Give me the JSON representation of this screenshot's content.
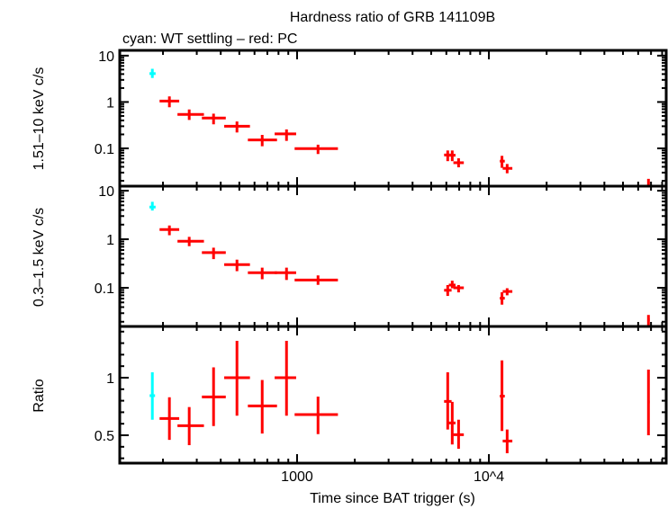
{
  "title": "Hardness ratio of GRB 141109B",
  "subtitle": "cyan: WT settling – red: PC",
  "xlabel": "Time since BAT trigger (s)",
  "colors": {
    "WT": "#00ffff",
    "PC": "#ff0000",
    "axes": "#000000"
  },
  "chart_data": [
    {
      "type": "scatter",
      "panel": "top",
      "ylabel": "1.51–10 keV c/s",
      "xscale": "log",
      "yscale": "log",
      "xlim": [
        119,
        84000
      ],
      "ylim": [
        0.0153,
        13
      ],
      "xticks": [
        {
          "value": 1000,
          "label": "1000"
        },
        {
          "value": 10000,
          "label": "10^4"
        }
      ],
      "yticks": [
        {
          "value": 10,
          "label": "10"
        },
        {
          "value": 1,
          "label": "1"
        },
        {
          "value": 0.1,
          "label": "0.1"
        }
      ],
      "point_format": [
        "t",
        "t_lo",
        "t_hi",
        "y",
        "y_lo",
        "y_hi"
      ],
      "series": [
        {
          "name": "WT settling",
          "color": "#00ffff",
          "points": [
            [
              176,
              170,
              183,
              4.1,
              3.3,
              5.2
            ]
          ]
        },
        {
          "name": "PC",
          "color": "#ff0000",
          "points": [
            [
              216,
              192,
              243,
              1.05,
              0.77,
              1.32
            ],
            [
              274,
              238,
              327,
              0.54,
              0.41,
              0.69
            ],
            [
              367,
              319,
              425,
              0.45,
              0.33,
              0.56
            ],
            [
              486,
              417,
              568,
              0.3,
              0.22,
              0.38
            ],
            [
              658,
              554,
              786,
              0.152,
              0.111,
              0.195
            ],
            [
              881,
              764,
              989,
              0.205,
              0.145,
              0.256
            ],
            [
              1286,
              971,
              1633,
              0.099,
              0.0755,
              0.12
            ],
            [
              6100,
              5840,
              6390,
              0.072,
              0.053,
              0.09
            ],
            [
              6440,
              6180,
              6700,
              0.071,
              0.053,
              0.09
            ],
            [
              6950,
              6530,
              7400,
              0.049,
              0.039,
              0.061
            ],
            [
              11700,
              11400,
              12100,
              0.053,
              0.038,
              0.069
            ],
            [
              12450,
              11800,
              13250,
              0.037,
              0.029,
              0.046
            ],
            [
              67900,
              67500,
              68900,
              0.018,
              0.012,
              0.022
            ]
          ]
        }
      ]
    },
    {
      "type": "scatter",
      "panel": "middle",
      "ylabel": "0.3–1.5 keV c/s",
      "xscale": "log",
      "yscale": "log",
      "xlim": [
        119,
        84000
      ],
      "ylim": [
        0.016,
        12.4
      ],
      "yticks": [
        {
          "value": 10,
          "label": "10"
        },
        {
          "value": 1,
          "label": "1"
        },
        {
          "value": 0.1,
          "label": "0.1"
        }
      ],
      "point_format": [
        "t",
        "t_lo",
        "t_hi",
        "y",
        "y_lo",
        "y_hi"
      ],
      "series": [
        {
          "name": "WT settling",
          "color": "#00ffff",
          "points": [
            [
              176,
              170,
              183,
              4.6,
              3.9,
              5.9
            ]
          ]
        },
        {
          "name": "PC",
          "color": "#ff0000",
          "points": [
            [
              216,
              192,
              243,
              1.58,
              1.21,
              1.92
            ],
            [
              274,
              238,
              327,
              0.91,
              0.72,
              1.12
            ],
            [
              367,
              319,
              425,
              0.53,
              0.39,
              0.67
            ],
            [
              486,
              417,
              568,
              0.3,
              0.22,
              0.38
            ],
            [
              658,
              554,
              786,
              0.204,
              0.15,
              0.26
            ],
            [
              881,
              764,
              989,
              0.204,
              0.145,
              0.26
            ],
            [
              1286,
              971,
              1633,
              0.145,
              0.115,
              0.18
            ],
            [
              6100,
              5840,
              6390,
              0.089,
              0.068,
              0.114
            ],
            [
              6440,
              6180,
              6700,
              0.114,
              0.098,
              0.14
            ],
            [
              6950,
              6530,
              7400,
              0.1,
              0.0805,
              0.114
            ],
            [
              11700,
              11400,
              12100,
              0.061,
              0.045,
              0.081
            ],
            [
              12450,
              11800,
              13250,
              0.084,
              0.07,
              0.098
            ],
            [
              67900,
              67500,
              68900,
              0.022,
              0.014,
              0.0276
            ]
          ]
        }
      ]
    },
    {
      "type": "scatter",
      "panel": "bottom",
      "ylabel": "Ratio",
      "xscale": "log",
      "yscale": "linear",
      "xlim": [
        119,
        84000
      ],
      "ylim": [
        0.258,
        1.445
      ],
      "yticks": [
        {
          "value": 1,
          "label": "1"
        },
        {
          "value": 0.5,
          "label": "0.5"
        }
      ],
      "point_format": [
        "t",
        "t_lo",
        "t_hi",
        "y",
        "y_lo",
        "y_hi"
      ],
      "series": [
        {
          "name": "WT settling",
          "color": "#00ffff",
          "points": [
            [
              176,
              176,
              176,
              0.844,
              0.635,
              1.047
            ]
          ]
        },
        {
          "name": "PC",
          "color": "#ff0000",
          "points": [
            [
              216,
              192,
              243,
              0.646,
              0.46,
              0.83
            ],
            [
              274,
              238,
              327,
              0.583,
              0.414,
              0.745
            ],
            [
              367,
              319,
              425,
              0.833,
              0.58,
              1.09
            ],
            [
              486,
              417,
              568,
              1.0,
              0.67,
              1.32
            ],
            [
              658,
              554,
              786,
              0.755,
              0.515,
              0.98
            ],
            [
              881,
              764,
              989,
              1.0,
              0.67,
              1.32
            ],
            [
              1286,
              971,
              1633,
              0.68,
              0.51,
              0.836
            ],
            [
              6100,
              5840,
              6390,
              0.794,
              0.55,
              1.047
            ],
            [
              6440,
              6180,
              6700,
              0.607,
              0.42,
              0.79
            ],
            [
              6950,
              6530,
              7400,
              0.505,
              0.383,
              0.635
            ],
            [
              11700,
              11400,
              12100,
              0.84,
              0.537,
              1.15
            ],
            [
              12450,
              11800,
              13250,
              0.45,
              0.344,
              0.55
            ],
            [
              67900,
              67500,
              68900,
              0.79,
              0.5,
              1.07
            ]
          ]
        }
      ]
    }
  ]
}
